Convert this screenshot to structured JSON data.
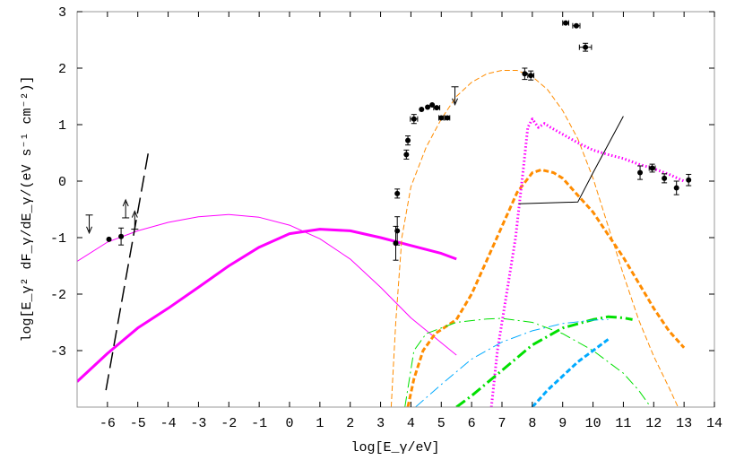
{
  "chart_data": {
    "type": "scatter",
    "title": "",
    "xlabel": "log[E_γ/eV]",
    "ylabel": "log[E_γ² dF_γ/dE_γ/(eV s⁻¹ cm⁻²)]",
    "xlim": [
      -7,
      14
    ],
    "ylim": [
      -4,
      3
    ],
    "x_ticks": [
      -6,
      -5,
      -4,
      -3,
      -2,
      -1,
      0,
      1,
      2,
      3,
      4,
      5,
      6,
      7,
      8,
      9,
      10,
      11,
      12,
      13,
      14
    ],
    "y_ticks": [
      -3,
      -2,
      -1,
      0,
      1,
      2,
      3
    ],
    "grid": false,
    "legend": "none",
    "points": [
      {
        "x": -5.95,
        "y": -1.03
      },
      {
        "x": -5.55,
        "y": -0.98,
        "yerr": 0.15
      },
      {
        "x": 3.55,
        "y": -0.22,
        "yerr": 0.08
      },
      {
        "x": 3.5,
        "y": -1.1,
        "yerr": 0.3
      },
      {
        "x": 3.55,
        "y": -0.88,
        "yerr": 0.25
      },
      {
        "x": 3.85,
        "y": 0.47,
        "yerr": 0.08
      },
      {
        "x": 3.9,
        "y": 0.72,
        "yerr": 0.08
      },
      {
        "x": 4.1,
        "y": 1.1,
        "xerr": 0.12,
        "yerr": 0.08
      },
      {
        "x": 4.35,
        "y": 1.27
      },
      {
        "x": 4.55,
        "y": 1.31
      },
      {
        "x": 4.7,
        "y": 1.35
      },
      {
        "x": 4.85,
        "y": 1.3,
        "xerr": 0.1
      },
      {
        "x": 5.0,
        "y": 1.12,
        "xerr": 0.08
      },
      {
        "x": 5.2,
        "y": 1.12,
        "xerr": 0.08
      },
      {
        "x": 7.75,
        "y": 1.9,
        "yerr": 0.1
      },
      {
        "x": 7.95,
        "y": 1.87,
        "xerr": 0.1,
        "yerr": 0.08
      },
      {
        "x": 9.1,
        "y": 2.8,
        "xerr": 0.1
      },
      {
        "x": 9.45,
        "y": 2.75,
        "xerr": 0.12
      },
      {
        "x": 9.75,
        "y": 2.37,
        "xerr": 0.2,
        "yerr": 0.07
      },
      {
        "x": 11.55,
        "y": 0.15,
        "yerr": 0.12
      },
      {
        "x": 11.95,
        "y": 0.23,
        "xerr": 0.1,
        "yerr": 0.07
      },
      {
        "x": 12.35,
        "y": 0.05,
        "yerr": 0.08
      },
      {
        "x": 12.75,
        "y": -0.12,
        "yerr": 0.12
      },
      {
        "x": 13.15,
        "y": 0.02,
        "yerr": 0.1
      }
    ],
    "upper_limits": [
      {
        "x": -6.6,
        "y": -0.6
      },
      {
        "x": 5.45,
        "y": 1.67
      }
    ],
    "lower_limits": [
      {
        "x": -5.4,
        "y": -0.65
      },
      {
        "x": -5.1,
        "y": -0.85
      }
    ],
    "curves": [
      {
        "color": "#ff00ff",
        "style": "solid",
        "width": 1,
        "points": [
          [
            -7,
            -1.42
          ],
          [
            -6,
            -1.08
          ],
          [
            -5,
            -0.88
          ],
          [
            -4,
            -0.73
          ],
          [
            -3,
            -0.63
          ],
          [
            -2,
            -0.59
          ],
          [
            -1,
            -0.64
          ],
          [
            0,
            -0.78
          ],
          [
            1,
            -1.02
          ],
          [
            2,
            -1.38
          ],
          [
            3,
            -1.88
          ],
          [
            4,
            -2.42
          ],
          [
            5,
            -2.86
          ],
          [
            5.5,
            -3.08
          ]
        ]
      },
      {
        "color": "#ff00ff",
        "style": "solid",
        "width": 3,
        "points": [
          [
            -7,
            -3.55
          ],
          [
            -6,
            -3.05
          ],
          [
            -5,
            -2.6
          ],
          [
            -4,
            -2.25
          ],
          [
            -3,
            -1.88
          ],
          [
            -2,
            -1.5
          ],
          [
            -1,
            -1.17
          ],
          [
            0,
            -0.93
          ],
          [
            1,
            -0.85
          ],
          [
            2,
            -0.88
          ],
          [
            3,
            -1.0
          ],
          [
            4,
            -1.14
          ],
          [
            5,
            -1.28
          ],
          [
            5.5,
            -1.38
          ]
        ]
      },
      {
        "color": "#000000",
        "style": "longdash",
        "width": 1.5,
        "points": [
          [
            -6.05,
            -3.7
          ],
          [
            -4.65,
            0.52
          ]
        ]
      },
      {
        "color": "#ff8c00",
        "style": "dashed",
        "width": 1,
        "points": [
          [
            3.35,
            -4.0
          ],
          [
            3.5,
            -2.5
          ],
          [
            3.7,
            -1.0
          ],
          [
            4,
            -0.1
          ],
          [
            4.5,
            0.6
          ],
          [
            5,
            1.1
          ],
          [
            5.5,
            1.5
          ],
          [
            6,
            1.75
          ],
          [
            6.5,
            1.9
          ],
          [
            7,
            1.96
          ],
          [
            7.5,
            1.96
          ],
          [
            8,
            1.85
          ],
          [
            8.5,
            1.62
          ],
          [
            9,
            1.25
          ],
          [
            9.5,
            0.75
          ],
          [
            10,
            0.05
          ],
          [
            10.5,
            -0.8
          ],
          [
            11,
            -1.65
          ],
          [
            11.5,
            -2.45
          ],
          [
            12,
            -3.1
          ],
          [
            12.5,
            -3.65
          ],
          [
            12.8,
            -4.0
          ]
        ]
      },
      {
        "color": "#ff8c00",
        "style": "dashed",
        "width": 3,
        "points": [
          [
            3.9,
            -4.0
          ],
          [
            4.1,
            -3.5
          ],
          [
            4.4,
            -3.0
          ],
          [
            4.8,
            -2.7
          ],
          [
            5.5,
            -2.45
          ],
          [
            6,
            -2.0
          ],
          [
            6.5,
            -1.4
          ],
          [
            7,
            -0.8
          ],
          [
            7.5,
            -0.2
          ],
          [
            8,
            0.15
          ],
          [
            8.3,
            0.2
          ],
          [
            8.7,
            0.15
          ],
          [
            9,
            0.05
          ],
          [
            9.5,
            -0.25
          ],
          [
            10,
            -0.55
          ],
          [
            10.5,
            -0.95
          ],
          [
            11,
            -1.35
          ],
          [
            11.5,
            -1.8
          ],
          [
            12,
            -2.25
          ],
          [
            12.5,
            -2.65
          ],
          [
            13,
            -2.95
          ]
        ]
      },
      {
        "color": "#ff00ff",
        "style": "dotted",
        "width": 3,
        "points": [
          [
            6.65,
            -4.0
          ],
          [
            6.85,
            -3.0
          ],
          [
            7.15,
            -2.0
          ],
          [
            7.45,
            -1.0
          ],
          [
            7.7,
            0.2
          ],
          [
            7.85,
            0.95
          ],
          [
            8.0,
            1.1
          ],
          [
            8.2,
            0.95
          ],
          [
            8.4,
            1.02
          ],
          [
            8.6,
            0.95
          ],
          [
            9,
            0.83
          ],
          [
            9.5,
            0.68
          ],
          [
            10,
            0.55
          ],
          [
            10.5,
            0.47
          ],
          [
            11,
            0.4
          ],
          [
            11.5,
            0.3
          ],
          [
            12,
            0.22
          ],
          [
            12.5,
            0.12
          ],
          [
            13,
            0.0
          ]
        ]
      },
      {
        "color": "#000000",
        "style": "solid",
        "width": 1,
        "points": [
          [
            7.55,
            -0.4
          ],
          [
            9.5,
            -0.37
          ],
          [
            10,
            0.15
          ],
          [
            10.5,
            0.65
          ],
          [
            11,
            1.15
          ]
        ]
      },
      {
        "color": "#00e000",
        "style": "dashdot",
        "width": 1,
        "points": [
          [
            3.8,
            -4.0
          ],
          [
            4.1,
            -3.0
          ],
          [
            4.5,
            -2.7
          ],
          [
            5.5,
            -2.5
          ],
          [
            6.5,
            -2.44
          ],
          [
            7,
            -2.43
          ],
          [
            8,
            -2.5
          ],
          [
            9,
            -2.7
          ],
          [
            10,
            -3.0
          ],
          [
            11,
            -3.4
          ],
          [
            11.5,
            -3.7
          ],
          [
            11.9,
            -4.0
          ]
        ]
      },
      {
        "color": "#00e000",
        "style": "dashdot",
        "width": 3,
        "points": [
          [
            5.5,
            -4.0
          ],
          [
            6,
            -3.8
          ],
          [
            7,
            -3.35
          ],
          [
            8,
            -2.9
          ],
          [
            9,
            -2.6
          ],
          [
            10,
            -2.45
          ],
          [
            10.5,
            -2.4
          ],
          [
            11,
            -2.42
          ],
          [
            11.3,
            -2.45
          ]
        ]
      },
      {
        "color": "#00aaff",
        "style": "dashdot",
        "width": 1,
        "points": [
          [
            4.15,
            -4.0
          ],
          [
            5,
            -3.6
          ],
          [
            6,
            -3.15
          ],
          [
            7,
            -2.85
          ],
          [
            8,
            -2.65
          ],
          [
            9,
            -2.52
          ],
          [
            10,
            -2.46
          ],
          [
            10.5,
            -2.45
          ]
        ]
      },
      {
        "color": "#00aaff",
        "style": "dashed",
        "width": 3,
        "points": [
          [
            8.0,
            -4.0
          ],
          [
            8.5,
            -3.7
          ],
          [
            9,
            -3.45
          ],
          [
            9.5,
            -3.2
          ],
          [
            10,
            -3.0
          ],
          [
            10.5,
            -2.8
          ]
        ]
      }
    ]
  }
}
